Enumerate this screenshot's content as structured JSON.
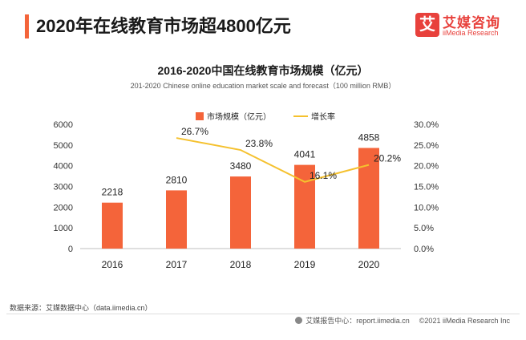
{
  "header": {
    "headline": "2020年在线教育市场超4800亿元",
    "logo_cn": "艾媒咨询",
    "logo_en": "iiMedia Research",
    "logo_mark": "艾"
  },
  "chart_data": {
    "type": "bar",
    "title": "2016-2020中国在线教育市场规模（亿元）",
    "subtitle": "201-2020 Chinese online education market scale and forecast（100 million RMB）",
    "categories": [
      "2016",
      "2017",
      "2018",
      "2019",
      "2020"
    ],
    "series": [
      {
        "name": "市场规模（亿元）",
        "type": "bar",
        "axis": "left",
        "color": "#f4643a",
        "values": [
          2218,
          2810,
          3480,
          4041,
          4858
        ],
        "labels": [
          "2218",
          "2810",
          "3480",
          "4041",
          "4858"
        ]
      },
      {
        "name": "增长率",
        "type": "line",
        "axis": "right",
        "color": "#f5c12e",
        "x": [
          "2017",
          "2018",
          "2019",
          "2020"
        ],
        "values": [
          26.7,
          23.8,
          16.1,
          20.2
        ],
        "labels": [
          "26.7%",
          "23.8%",
          "16.1%",
          "20.2%"
        ]
      }
    ],
    "y_left": {
      "min": 0,
      "max": 6000,
      "ticks": [
        "0",
        "1000",
        "2000",
        "3000",
        "4000",
        "5000",
        "6000"
      ]
    },
    "y_right": {
      "min": 0,
      "max": 30,
      "ticks": [
        "0.0%",
        "5.0%",
        "10.0%",
        "15.0%",
        "20.0%",
        "25.0%",
        "30.0%"
      ]
    },
    "grid": false,
    "legend": "top-center"
  },
  "footer": {
    "source": "数据来源：艾媒数据中心（data.iimedia.cn）",
    "report": "艾媒报告中心：report.iimedia.cn",
    "copyright": "©2021 iiMedia Research Inc"
  }
}
